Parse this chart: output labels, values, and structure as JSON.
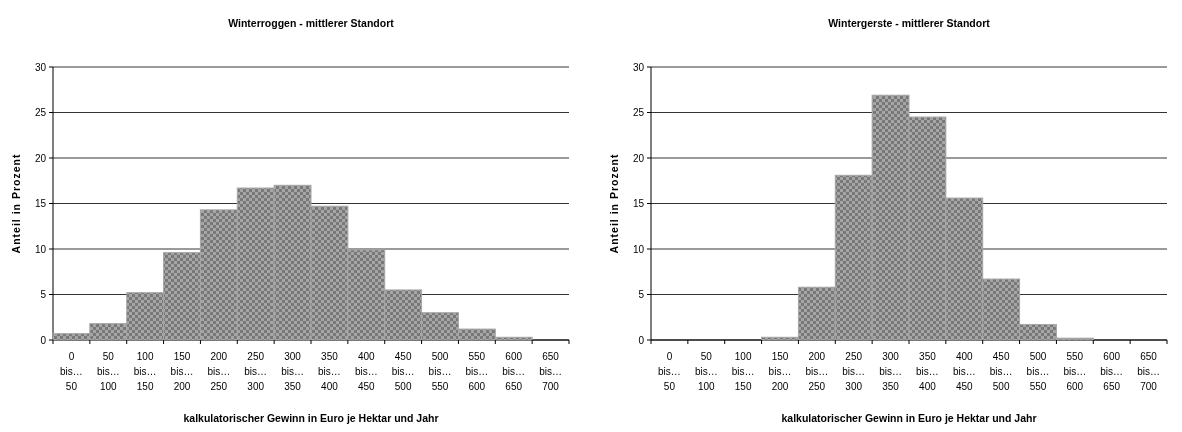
{
  "chart_data": [
    {
      "type": "bar",
      "title": "Winterroggen - mittlerer Standort",
      "xlabel": "kalkulatorischer Gewinn in Euro je Hektar und Jahr",
      "ylabel": "Anteil in Prozent",
      "categories": [
        "0\nbis…\n50",
        "50\nbis…\n100",
        "100\nbis…\n150",
        "150\nbis…\n200",
        "200\nbis…\n250",
        "250\nbis…\n300",
        "300\nbis…\n350",
        "350\nbis…\n400",
        "400\nbis…\n450",
        "450\nbis…\n500",
        "500\nbis…\n550",
        "550\nbis…\n600",
        "600\nbis…\n650",
        "650\nbis…\n700"
      ],
      "values": [
        0.7,
        1.8,
        5.2,
        9.6,
        14.3,
        16.7,
        17.0,
        14.7,
        9.9,
        5.5,
        3.0,
        1.2,
        0.3,
        0
      ],
      "color": "#a6a6a6",
      "ylim": [
        0,
        30
      ],
      "yticks": [
        0,
        5,
        10,
        15,
        20,
        25,
        30
      ],
      "grid": "y"
    },
    {
      "type": "bar",
      "title": "Wintergerste - mittlerer Standort",
      "xlabel": "kalkulatorischer Gewinn in Euro je Hektar und Jahr",
      "ylabel": "Anteil in Prozent",
      "categories": [
        "0\nbis…\n50",
        "50\nbis…\n100",
        "100\nbis…\n150",
        "150\nbis…\n200",
        "200\nbis…\n250",
        "250\nbis…\n300",
        "300\nbis…\n350",
        "350\nbis…\n400",
        "400\nbis…\n450",
        "450\nbis…\n500",
        "500\nbis…\n550",
        "550\nbis…\n600",
        "600\nbis…\n650",
        "650\nbis…\n700"
      ],
      "values": [
        0,
        0,
        0,
        0.3,
        5.8,
        18.1,
        26.9,
        24.5,
        15.6,
        6.7,
        1.7,
        0.2,
        0,
        0
      ],
      "color": "#a6a6a6",
      "ylim": [
        0,
        30
      ],
      "yticks": [
        0,
        5,
        10,
        15,
        20,
        25,
        30
      ],
      "grid": "y"
    }
  ]
}
